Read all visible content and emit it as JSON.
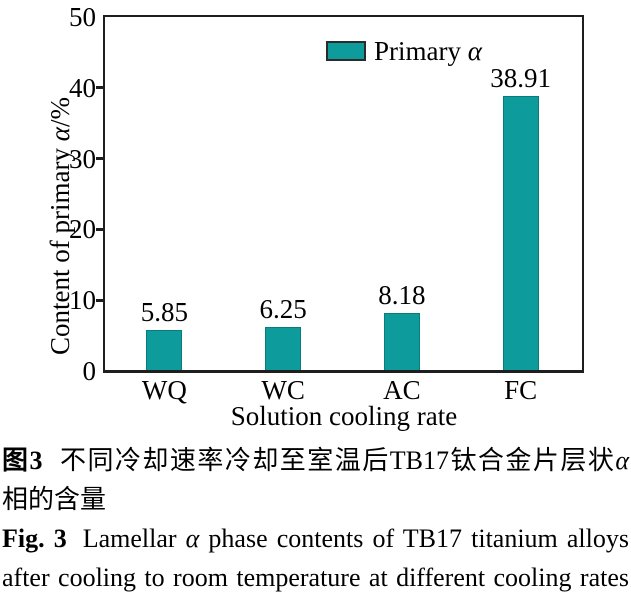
{
  "chart_data": {
    "type": "bar",
    "categories": [
      "WQ",
      "WC",
      "AC",
      "FC"
    ],
    "values": [
      5.85,
      6.25,
      8.18,
      38.91
    ],
    "value_labels": [
      "5.85",
      "6.25",
      "8.18",
      "38.91"
    ],
    "legend_prefix": "Primary ",
    "legend_alpha": "α",
    "xlabel": "Solution cooling rate",
    "ylabel_prefix": "Content of primary ",
    "ylabel_alpha": "α",
    "ylabel_suffix": "/%",
    "ylim": [
      0,
      50
    ],
    "yticks": [
      0,
      10,
      20,
      30,
      40,
      50
    ],
    "grid": false,
    "legend_position": "top-center",
    "bar_color": "#0E9B9B",
    "bar_border_color": "#0B7C7C",
    "axis_color": "#1e1e1e"
  },
  "caption": {
    "zh": {
      "fig_label": "图3",
      "line1_text": "不同冷却速率冷却至室温后TB17钛合金片层状",
      "line1_alpha": "α",
      "line2": "相的含量"
    },
    "en": {
      "fig_label": "Fig. 3",
      "line1_pre": "Lamellar ",
      "line1_alpha": "α",
      "line1_post": " phase contents of TB17 titanium alloys",
      "line2": "after cooling to room temperature at different cooling rates"
    }
  }
}
